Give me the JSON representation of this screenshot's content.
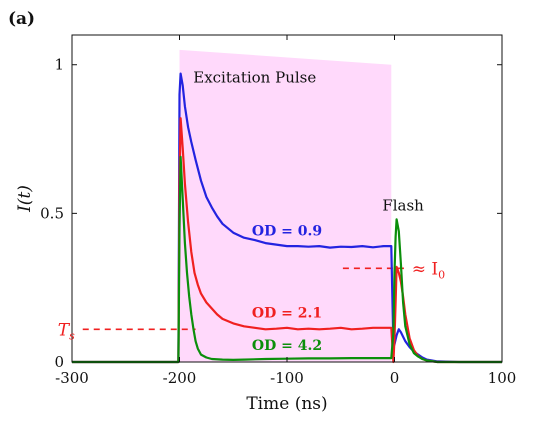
{
  "panel_label": "(a)",
  "chart_data": {
    "type": "line",
    "xlabel": "Time (ns)",
    "ylabel": "I(t)",
    "xlim": [
      -300,
      100
    ],
    "ylim": [
      0,
      1.1
    ],
    "xticks": [
      -300,
      -200,
      -100,
      0,
      100
    ],
    "xtick_labels": [
      "-300",
      "-200",
      "-100",
      "0",
      "100"
    ],
    "yticks": [
      0,
      0.5,
      1
    ],
    "ytick_labels": [
      "0",
      "0.5",
      "1"
    ],
    "grid": false,
    "pulse": {
      "label": "Excitation Pulse",
      "x_start": -200,
      "x_end": -3,
      "y_start": 1.05,
      "y_end": 1.0,
      "color": "#ffd9fb"
    },
    "series": [
      {
        "name": "OD = 0.9",
        "color": "#2323e0",
        "x": [
          -300,
          -201,
          -200,
          -199,
          -197,
          -195,
          -192,
          -189,
          -185,
          -180,
          -175,
          -170,
          -165,
          -160,
          -150,
          -140,
          -130,
          -120,
          -110,
          -100,
          -90,
          -80,
          -70,
          -60,
          -50,
          -40,
          -30,
          -20,
          -10,
          -3,
          -1,
          0,
          2,
          4,
          6,
          8,
          10,
          14,
          18,
          22,
          26,
          30,
          40,
          60,
          80,
          100
        ],
        "y": [
          0,
          0,
          0.9,
          0.97,
          0.93,
          0.86,
          0.79,
          0.74,
          0.68,
          0.61,
          0.555,
          0.52,
          0.49,
          0.465,
          0.435,
          0.418,
          0.41,
          0.4,
          0.395,
          0.39,
          0.39,
          0.388,
          0.39,
          0.385,
          0.388,
          0.387,
          0.39,
          0.386,
          0.39,
          0.39,
          0.05,
          0.06,
          0.09,
          0.11,
          0.1,
          0.085,
          0.07,
          0.05,
          0.035,
          0.025,
          0.015,
          0.008,
          0.002,
          0,
          0,
          0
        ]
      },
      {
        "name": "OD = 2.1",
        "color": "#f02020",
        "x": [
          -300,
          -201,
          -200,
          -199,
          -197,
          -195,
          -192,
          -189,
          -186,
          -183,
          -180,
          -175,
          -170,
          -165,
          -160,
          -150,
          -140,
          -130,
          -120,
          -110,
          -100,
          -90,
          -80,
          -70,
          -60,
          -50,
          -40,
          -30,
          -20,
          -10,
          -3,
          -1,
          0,
          1,
          2,
          4,
          6,
          8,
          10,
          14,
          18,
          22,
          26,
          30,
          40,
          60,
          80,
          100
        ],
        "y": [
          0,
          0,
          0.6,
          0.82,
          0.72,
          0.6,
          0.47,
          0.37,
          0.3,
          0.26,
          0.23,
          0.2,
          0.18,
          0.16,
          0.145,
          0.13,
          0.12,
          0.115,
          0.11,
          0.112,
          0.115,
          0.11,
          0.112,
          0.11,
          0.112,
          0.115,
          0.11,
          0.112,
          0.115,
          0.115,
          0.115,
          0.0,
          0.08,
          0.2,
          0.32,
          0.3,
          0.27,
          0.22,
          0.16,
          0.08,
          0.04,
          0.02,
          0.01,
          0.005,
          0.0,
          0,
          0,
          0
        ]
      },
      {
        "name": "OD = 4.2",
        "color": "#0b8f0b",
        "x": [
          -300,
          -201,
          -200,
          -199,
          -197,
          -195,
          -193,
          -191,
          -189,
          -187,
          -185,
          -183,
          -180,
          -175,
          -170,
          -160,
          -150,
          -140,
          -120,
          -100,
          -80,
          -60,
          -40,
          -20,
          -3,
          -1,
          0,
          1,
          2,
          4,
          6,
          8,
          10,
          14,
          18,
          22,
          26,
          30,
          40,
          60,
          80,
          100
        ],
        "y": [
          0,
          0,
          0.45,
          0.69,
          0.55,
          0.4,
          0.3,
          0.22,
          0.16,
          0.11,
          0.07,
          0.045,
          0.025,
          0.015,
          0.01,
          0.008,
          0.007,
          0.008,
          0.01,
          0.011,
          0.012,
          0.012,
          0.013,
          0.013,
          0.013,
          0.1,
          0.3,
          0.42,
          0.48,
          0.44,
          0.33,
          0.2,
          0.12,
          0.06,
          0.03,
          0.018,
          0.01,
          0.005,
          0,
          0,
          0,
          0
        ]
      }
    ],
    "annotations": {
      "flash": "Flash",
      "i0": "≈ I",
      "i0_sub": "0",
      "ts": "T",
      "ts_sub": "s",
      "ts_level": 0.11,
      "i0_level": 0.315,
      "ts_line_x": [
        -300,
        -185
      ],
      "i0_line_x": [
        -48,
        12
      ]
    }
  }
}
